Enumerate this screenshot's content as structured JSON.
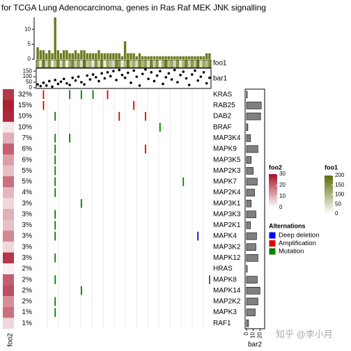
{
  "title": "for TCGA Lung Adenocarcinoma, genes in Ras Raf MEK JNK signalling",
  "genes": [
    "KRAS",
    "RAB25",
    "DAB2",
    "BRAF",
    "MAP3K4",
    "MAPK9",
    "MAP3K5",
    "MAP2K3",
    "MAPK7",
    "MAP2K4",
    "MAP3K1",
    "MAP3K3",
    "MAP2K1",
    "MAPK4",
    "MAP3K2",
    "MAPK12",
    "HRAS",
    "MAPK8",
    "MAPK14",
    "MAP2K2",
    "MAPK3",
    "RAF1"
  ],
  "percent_labels": [
    "32%",
    "15%",
    "10%",
    "10%",
    "7%",
    "6%",
    "6%",
    "5%",
    "5%",
    "4%",
    "3%",
    "3%",
    "3%",
    "3%",
    "3%",
    "3%",
    "2%",
    "2%",
    "2%",
    "2%",
    "1%",
    "1%"
  ],
  "foo2": {
    "name": "foo2",
    "values": [
      25,
      28,
      27,
      3,
      10,
      20,
      12,
      8,
      18,
      9,
      5,
      10,
      8,
      15,
      5,
      25,
      2,
      20,
      22,
      14,
      18,
      5
    ],
    "lim": [
      0,
      30
    ],
    "ticks": [
      0,
      10,
      20,
      30
    ],
    "color": "#a50f26"
  },
  "bar2": {
    "name": "bar2",
    "values": [
      1,
      22,
      21,
      2,
      6,
      17,
      7,
      10,
      16,
      12,
      7,
      14,
      6,
      15,
      14,
      17,
      1,
      16,
      20,
      17,
      13,
      3
    ],
    "xlim": [
      0,
      27
    ],
    "xticks": [
      0,
      10,
      20
    ],
    "color": "#808080"
  },
  "top_bar": {
    "values": [
      4,
      3,
      3,
      2,
      3,
      2,
      14,
      3,
      2,
      3,
      3,
      2,
      2,
      3,
      2,
      3,
      3,
      2,
      2,
      2,
      2,
      3,
      2,
      2,
      2,
      2,
      2,
      2,
      2,
      1,
      6,
      2,
      2,
      2,
      1,
      2,
      1,
      1,
      1,
      1,
      1,
      1,
      1,
      1,
      1,
      1,
      1,
      1,
      1,
      1,
      1,
      1,
      1,
      1,
      1,
      1,
      1,
      1,
      2,
      2
    ],
    "ylim": [
      0,
      14
    ],
    "yticks": [
      0,
      5,
      10
    ],
    "color": "#6b7b1f"
  },
  "foo1": {
    "name": "foo1",
    "values": [
      120,
      40,
      180,
      60,
      150,
      30,
      90,
      170,
      50,
      140,
      20,
      110,
      160,
      70,
      130,
      45,
      190,
      80,
      100,
      35,
      150,
      60,
      175,
      25,
      120,
      90,
      55,
      165,
      140,
      30,
      100,
      185,
      75,
      115,
      50,
      160,
      95,
      130,
      40,
      170,
      65,
      145,
      20,
      110,
      180,
      85,
      125,
      55,
      155,
      35,
      100,
      170,
      60,
      140,
      80,
      190,
      45,
      120,
      90,
      150
    ],
    "lim": [
      0,
      200
    ],
    "ticks": [
      0,
      50,
      100,
      150,
      200
    ],
    "color": "#5c6e00"
  },
  "bar1": {
    "name": "bar1",
    "values": [
      30,
      15,
      45,
      20,
      60,
      10,
      70,
      35,
      55,
      80,
      40,
      25,
      90,
      65,
      100,
      50,
      30,
      110,
      75,
      120,
      95,
      60,
      130,
      85,
      140,
      105,
      150,
      70,
      160,
      115,
      90,
      135,
      45,
      155,
      100,
      20,
      125,
      165,
      80,
      140,
      60,
      110,
      150,
      35,
      95,
      130,
      75,
      160,
      50,
      115,
      145,
      85,
      25,
      120,
      155,
      65,
      100,
      140,
      40,
      90
    ],
    "ylim": [
      0,
      170
    ],
    "yticks": [
      0,
      50,
      100,
      150
    ]
  },
  "alterations_legend": {
    "title": "Alternations",
    "types": [
      {
        "name": "Deep deletion",
        "color": "#0000ff"
      },
      {
        "name": "Amplification",
        "color": "#e00000"
      },
      {
        "name": "Mutation",
        "color": "#008000"
      }
    ]
  },
  "alterations": [
    {
      "gene": 0,
      "sample": 2,
      "type": 1
    },
    {
      "gene": 0,
      "sample": 24,
      "type": 1
    },
    {
      "gene": 0,
      "sample": 11,
      "type": 2
    },
    {
      "gene": 0,
      "sample": 15,
      "type": 2
    },
    {
      "gene": 0,
      "sample": 19,
      "type": 2
    },
    {
      "gene": 1,
      "sample": 2,
      "type": 1
    },
    {
      "gene": 1,
      "sample": 33,
      "type": 1
    },
    {
      "gene": 2,
      "sample": 28,
      "type": 1
    },
    {
      "gene": 2,
      "sample": 37,
      "type": 1
    },
    {
      "gene": 3,
      "sample": 42,
      "type": 2
    },
    {
      "gene": 4,
      "sample": 11,
      "type": 2
    },
    {
      "gene": 5,
      "sample": 37,
      "type": 1
    },
    {
      "gene": 8,
      "sample": 50,
      "type": 2
    },
    {
      "gene": 10,
      "sample": 15,
      "type": 2
    },
    {
      "gene": 13,
      "sample": 55,
      "type": 0
    },
    {
      "gene": 18,
      "sample": 15,
      "type": 2
    },
    {
      "gene": 17,
      "sample": 59,
      "type": 2
    },
    {
      "gene": 2,
      "sample": 6,
      "type": 2
    },
    {
      "gene": 4,
      "sample": 6,
      "type": 2
    },
    {
      "gene": 5,
      "sample": 6,
      "type": 2
    },
    {
      "gene": 6,
      "sample": 6,
      "type": 2
    },
    {
      "gene": 7,
      "sample": 6,
      "type": 2
    },
    {
      "gene": 8,
      "sample": 6,
      "type": 2
    },
    {
      "gene": 9,
      "sample": 6,
      "type": 2
    },
    {
      "gene": 11,
      "sample": 6,
      "type": 2
    },
    {
      "gene": 12,
      "sample": 6,
      "type": 2
    },
    {
      "gene": 13,
      "sample": 6,
      "type": 2
    },
    {
      "gene": 15,
      "sample": 6,
      "type": 2
    },
    {
      "gene": 17,
      "sample": 6,
      "type": 2
    },
    {
      "gene": 19,
      "sample": 6,
      "type": 2
    },
    {
      "gene": 20,
      "sample": 6,
      "type": 2
    }
  ],
  "watermark": "知乎 @李小月"
}
